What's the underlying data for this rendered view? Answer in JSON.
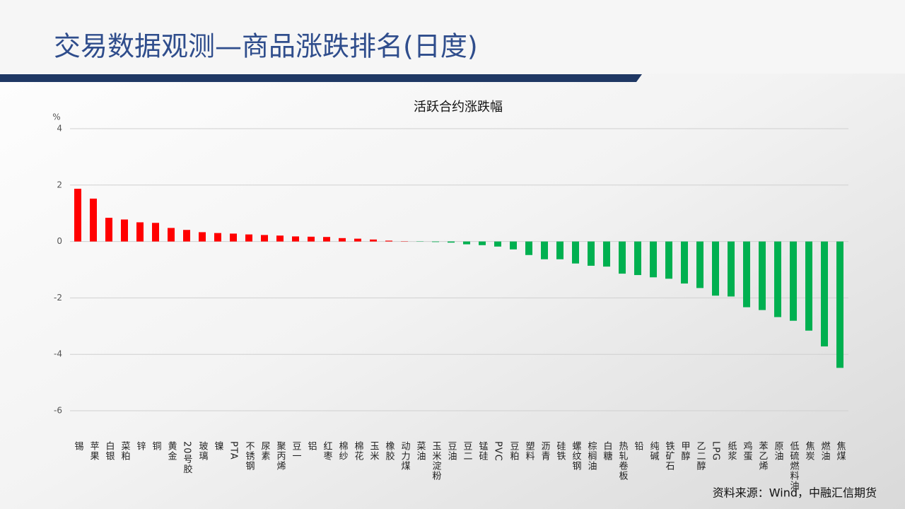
{
  "header": {
    "title": "交易数据观测—商品涨跌排名(日度)"
  },
  "chart_data": {
    "type": "bar",
    "title": "活跃合约涨跌幅",
    "y_label": "%",
    "categories": [
      "锡",
      "苹果",
      "白银",
      "菜粕",
      "锌",
      "铜",
      "黄金",
      "20号胶",
      "玻璃",
      "镍",
      "PTA",
      "不锈钢",
      "尿素",
      "聚丙烯",
      "豆一",
      "铝",
      "红枣",
      "棉纱",
      "棉花",
      "玉米",
      "橡胶",
      "动力煤",
      "菜油",
      "玉米淀粉",
      "豆油",
      "豆二",
      "锰硅",
      "PVC",
      "豆粕",
      "塑料",
      "沥青",
      "硅铁",
      "螺纹钢",
      "棕榈油",
      "白糖",
      "热轧卷板",
      "铅",
      "纯碱",
      "铁矿石",
      "甲醇",
      "乙二醇",
      "LPG",
      "纸浆",
      "鸡蛋",
      "苯乙烯",
      "原油",
      "低硫燃料油",
      "焦炭",
      "燃油",
      "焦煤"
    ],
    "values": [
      1.87,
      1.52,
      0.84,
      0.78,
      0.68,
      0.66,
      0.48,
      0.41,
      0.33,
      0.3,
      0.28,
      0.25,
      0.23,
      0.21,
      0.18,
      0.17,
      0.16,
      0.12,
      0.1,
      0.07,
      0.03,
      0.01,
      -0.01,
      -0.02,
      -0.04,
      -0.1,
      -0.13,
      -0.18,
      -0.28,
      -0.48,
      -0.63,
      -0.63,
      -0.78,
      -0.86,
      -0.89,
      -1.14,
      -1.19,
      -1.27,
      -1.32,
      -1.49,
      -1.65,
      -1.92,
      -1.95,
      -2.33,
      -2.43,
      -2.68,
      -2.81,
      -3.16,
      -3.72,
      -4.48
    ],
    "positive_color": "#ff0000",
    "negative_color": "#00b050",
    "ylim": [
      -6,
      4
    ],
    "yticks": [
      4,
      2,
      0,
      -2,
      -4,
      -6
    ],
    "grid": true
  },
  "footer": {
    "source": "资料来源：Wind，中融汇信期货"
  }
}
